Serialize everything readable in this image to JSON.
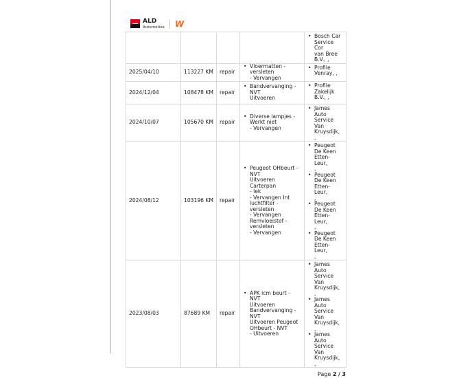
{
  "header": {
    "brand": "ALD",
    "brand_sub": "Automotive",
    "partner_logo": "W"
  },
  "rows": [
    {
      "date": "",
      "km": "",
      "type": "",
      "description": [],
      "garage": [
        "Bosch Car\nService Cor\nvan Bree\nB.V., ,"
      ]
    },
    {
      "date": "2025/04/10",
      "km": "113227 KM",
      "type": "repair",
      "description": [
        "Vloermatten   -\nversleten\n- Vervangen"
      ],
      "garage": [
        "Profile\nVenray, ,"
      ]
    },
    {
      "date": "2024/12/04",
      "km": "108478 KM",
      "type": "repair",
      "description": [
        "Bandvervanging  -\nNVT\nUitvoeren"
      ],
      "garage": [
        "Profile\nZakelijk\nB.V., ,"
      ]
    },
    {
      "date": "2024/10/07",
      "km": "105670 KM",
      "type": "repair",
      "description": [
        "Diverse lampjes  -\nWerkt niet\n- Vervangen"
      ],
      "garage": [
        "James\nAuto\nService\nVan\nKruysdijk, ,"
      ]
    },
    {
      "date": "2024/08/12",
      "km": "103196 KM",
      "type": "repair",
      "description": [
        "Peugeot OHbeurt  -\nNVT\nUitvoeren  Carterpan\n- lek\n- Vervangen  Int\nluchtfilter  - versleten\n- Vervangen\nRemvloeistof    -\nversleten\n- Vervangen"
      ],
      "garage": [
        "Peugeot\nDe Keen\nEtten-Leur,\n,",
        "Peugeot\nDe Keen\nEtten-Leur,\n,",
        "Peugeot\nDe Keen\nEtten-Leur,\n,",
        "Peugeot\nDe Keen\nEtten-Leur,\n,"
      ]
    },
    {
      "date": "2023/08/03",
      "km": "87689 KM",
      "type": "repair",
      "description": [
        "APK icm beurt   -\nNVT\nUitvoeren\nBandvervanging  -\nNVT\nUitvoeren  Peugeot\nOHbeurt  - NVT\n- Uitvoeren"
      ],
      "garage": [
        "James\nAuto\nService\nVan\nKruysdijk, ,",
        "James\nAuto\nService\nVan\nKruysdijk, ,",
        "James\nAuto\nService\nVan\nKruysdijk, ,"
      ]
    }
  ],
  "footer": {
    "page_label": "Page",
    "page_current": "2",
    "page_sep": "/",
    "page_total": "3"
  }
}
